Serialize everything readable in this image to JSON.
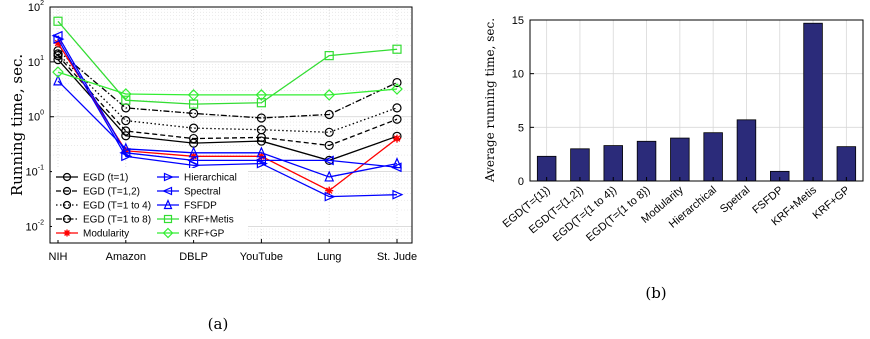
{
  "chart_data": [
    {
      "type": "line",
      "panel_label": "(a)",
      "ylabel": "Running time, sec.",
      "yscale": "log",
      "ylim": [
        0.005,
        100
      ],
      "ytick_labels": [
        {
          "base": "10",
          "exp": "-2",
          "value": 0.01
        },
        {
          "base": "10",
          "exp": "-1",
          "value": 0.1
        },
        {
          "base": "10",
          "exp": "0",
          "value": 1
        },
        {
          "base": "10",
          "exp": "1",
          "value": 10
        },
        {
          "base": "10",
          "exp": "2",
          "value": 100
        }
      ],
      "categories": [
        "NIH",
        "Amazon",
        "DBLP",
        "YouTube",
        "Lung",
        "St. Jude"
      ],
      "grid": true,
      "legend_position": "bottom-left",
      "series": [
        {
          "name": "EGD (t=1)",
          "color": "#000000",
          "dash": "solid",
          "marker": "circle",
          "values": [
            11,
            0.45,
            0.33,
            0.36,
            0.16,
            0.44
          ]
        },
        {
          "name": "EGD (T=1,2)",
          "color": "#000000",
          "dash": "dash",
          "marker": "circle",
          "values": [
            13,
            0.55,
            0.4,
            0.42,
            0.3,
            0.9
          ]
        },
        {
          "name": "EGD (T=1 to 4)",
          "color": "#000000",
          "dash": "dot",
          "marker": "circle",
          "values": [
            14,
            0.85,
            0.62,
            0.58,
            0.52,
            1.45
          ]
        },
        {
          "name": "EGD (T=1 to 8)",
          "color": "#000000",
          "dash": "dashdot",
          "marker": "circle",
          "values": [
            16,
            1.45,
            1.15,
            0.95,
            1.1,
            4.2
          ]
        },
        {
          "name": "Modularity",
          "color": "#ff0000",
          "dash": "solid",
          "marker": "star",
          "values": [
            22,
            0.24,
            0.19,
            0.19,
            0.045,
            0.4
          ]
        },
        {
          "name": "Hierarchical",
          "color": "#0000ff",
          "dash": "solid",
          "marker": "triangle-right",
          "values": [
            26,
            0.19,
            0.13,
            0.14,
            0.035,
            0.038
          ]
        },
        {
          "name": "Spectral",
          "color": "#0000ff",
          "dash": "solid",
          "marker": "triangle-left",
          "values": [
            30,
            0.22,
            0.16,
            0.16,
            0.16,
            0.12
          ]
        },
        {
          "name": "FSFDP",
          "color": "#0000ff",
          "dash": "solid",
          "marker": "triangle-up",
          "values": [
            4.5,
            0.26,
            0.22,
            0.22,
            0.08,
            0.14
          ]
        },
        {
          "name": "KRF+Metis",
          "color": "#33dd33",
          "dash": "solid",
          "marker": "square",
          "values": [
            55,
            2.0,
            1.7,
            1.8,
            13,
            17
          ]
        },
        {
          "name": "KRF+GP",
          "color": "#33ee33",
          "dash": "solid",
          "marker": "diamond",
          "values": [
            6.5,
            2.6,
            2.5,
            2.5,
            2.5,
            3.2
          ]
        }
      ]
    },
    {
      "type": "bar",
      "panel_label": "(b)",
      "ylabel": "Average running time, sec.",
      "ylim": [
        0,
        15
      ],
      "yticks": [
        "0",
        "5",
        "10",
        "15"
      ],
      "grid": true,
      "bar_color": "#2b2b7a",
      "categories": [
        "EGD(T={1})",
        "EGD(T={1,2})",
        "EGD(T={1 to 4})",
        "EGD(T={1 to 8})",
        "Modularity",
        "Hierarchical",
        "Spetral",
        "FSFDP",
        "KRF+Metis",
        "KRF+GP"
      ],
      "values": [
        2.3,
        3.0,
        3.3,
        3.7,
        4.0,
        4.5,
        5.7,
        0.9,
        14.7,
        3.2
      ]
    }
  ]
}
